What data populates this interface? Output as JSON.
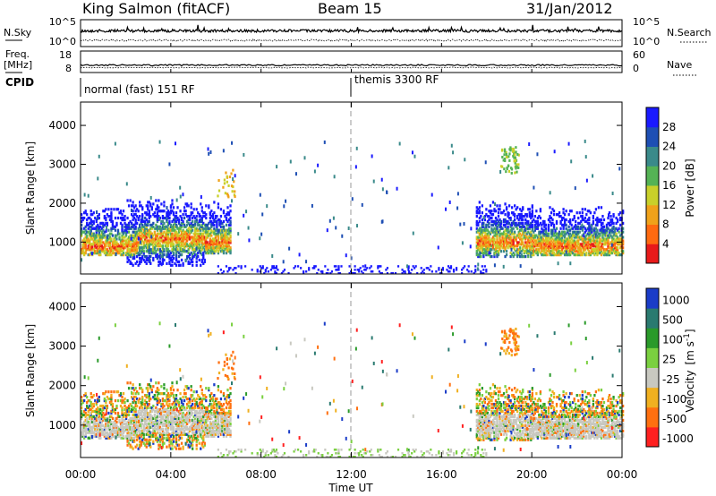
{
  "header": {
    "station": "King Salmon (fitACF)",
    "beam": "Beam 15",
    "date": "31/Jan/2012"
  },
  "noise_panel": {
    "left_label": "N.Sky",
    "right_label": "N.Search",
    "ticks_left": [
      "10^5",
      "10^0"
    ],
    "ticks_right": [
      "10^5",
      "10^0"
    ]
  },
  "freq_panel": {
    "left_label_line1": "Freq.",
    "left_label_line2": "[MHz]",
    "right_label": "Nave",
    "ticks_left": [
      "18",
      "8"
    ],
    "ticks_right": [
      "60",
      "0"
    ]
  },
  "cpid": {
    "label": "CPID",
    "modes": [
      "normal (fast) 151 RF",
      "themis 3300 RF"
    ]
  },
  "chart_data": [
    {
      "type": "heatmap",
      "name": "power",
      "ylabel": "Slant Range [km]",
      "ylim": [
        180,
        4600
      ],
      "yticks": [
        "1000",
        "2000",
        "3000",
        "4000"
      ],
      "xlim_hours": [
        0,
        24
      ],
      "colorbar_label": "Power [dB]",
      "colorbar_ticks": [
        "4",
        "8",
        "12",
        "16",
        "20",
        "24",
        "28"
      ],
      "colorbar_colors": [
        "#1a1aff",
        "#1e4fb4",
        "#3a8a8a",
        "#55b355",
        "#c9d02a",
        "#f0a21a",
        "#ff6a10",
        "#e81a1a"
      ],
      "echo_regions": [
        {
          "t0": 0.0,
          "t1": 2.5,
          "r0": 650,
          "r1": 1900,
          "core": 900
        },
        {
          "t0": 2.0,
          "t1": 5.5,
          "r0": 400,
          "r1": 2100,
          "core": 1100
        },
        {
          "t0": 5.0,
          "t1": 6.6,
          "r0": 700,
          "r1": 2700,
          "core": 1000
        },
        {
          "t0": 17.5,
          "t1": 20.0,
          "r0": 600,
          "r1": 2400,
          "core": 1000
        },
        {
          "t0": 20.0,
          "t1": 24.0,
          "r0": 650,
          "r1": 1900,
          "core": 900
        }
      ]
    },
    {
      "type": "heatmap",
      "name": "velocity",
      "ylabel": "Slant Range [km]",
      "ylim": [
        180,
        4600
      ],
      "yticks": [
        "1000",
        "2000",
        "3000",
        "4000"
      ],
      "xlim_hours": [
        0,
        24
      ],
      "xticks": [
        "00:00",
        "04:00",
        "08:00",
        "12:00",
        "16:00",
        "20:00",
        "00:00"
      ],
      "xlabel": "Time UT",
      "colorbar_label_main": "Velocity",
      "colorbar_label_unit": "[m s",
      "colorbar_label_exp": "-1",
      "colorbar_label_close": "]",
      "colorbar_ticks": [
        "1000",
        "500",
        "100",
        "25",
        "-25",
        "-100",
        "-500",
        "-1000"
      ],
      "colorbar_colors": [
        "#1a3cc8",
        "#2a7a70",
        "#2a9a2a",
        "#7ad040",
        "#c8c8c0",
        "#f0b020",
        "#ff7010",
        "#ff2020"
      ]
    }
  ],
  "colors": {
    "ground_scatter": "#c8c8c0",
    "axis": "#000000"
  }
}
